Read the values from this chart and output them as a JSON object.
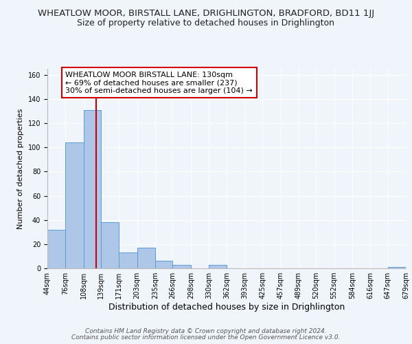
{
  "title": "WHEATLOW MOOR, BIRSTALL LANE, DRIGHLINGTON, BRADFORD, BD11 1JJ",
  "subtitle": "Size of property relative to detached houses in Drighlington",
  "xlabel": "Distribution of detached houses by size in Drighlington",
  "ylabel": "Number of detached properties",
  "footer_line1": "Contains HM Land Registry data © Crown copyright and database right 2024.",
  "footer_line2": "Contains public sector information licensed under the Open Government Licence v3.0.",
  "bar_edges": [
    44,
    76,
    108,
    139,
    171,
    203,
    235,
    266,
    298,
    330,
    362,
    393,
    425,
    457,
    489,
    520,
    552,
    584,
    616,
    647,
    679
  ],
  "bar_heights": [
    32,
    104,
    131,
    38,
    13,
    17,
    6,
    3,
    0,
    3,
    0,
    0,
    0,
    0,
    0,
    0,
    0,
    0,
    0,
    1
  ],
  "bar_color": "#aec6e8",
  "bar_edge_color": "#5b9bd5",
  "vline_x": 130,
  "vline_color": "#cc0000",
  "annotation_text": "WHEATLOW MOOR BIRSTALL LANE: 130sqm\n← 69% of detached houses are smaller (237)\n30% of semi-detached houses are larger (104) →",
  "annotation_fontsize": 8.0,
  "annotation_box_color": "#ffffff",
  "annotation_box_edgecolor": "#cc0000",
  "ylim": [
    0,
    165
  ],
  "title_fontsize": 9.5,
  "subtitle_fontsize": 9.0,
  "xlabel_fontsize": 9.0,
  "ylabel_fontsize": 8.0,
  "tick_fontsize": 7.0,
  "footer_fontsize": 6.5,
  "bg_color": "#f0f4fb",
  "grid_color": "#ffffff",
  "yticks": [
    0,
    20,
    40,
    60,
    80,
    100,
    120,
    140,
    160
  ]
}
